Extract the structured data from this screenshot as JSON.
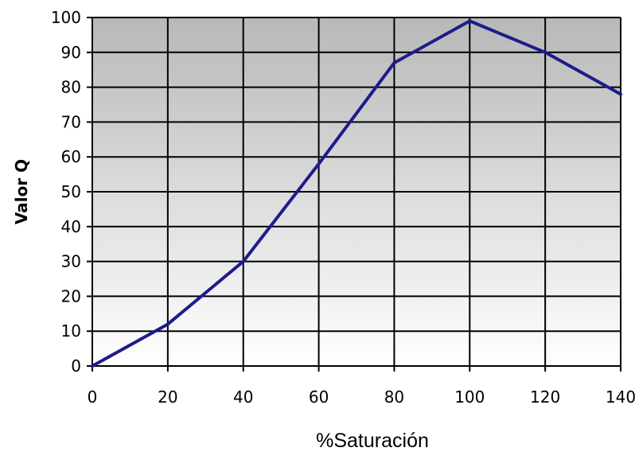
{
  "chart_data": {
    "type": "line",
    "xlabel": "%Saturación",
    "ylabel": "Valor Q",
    "xlim": [
      0,
      140
    ],
    "ylim": [
      0,
      100
    ],
    "x_ticks": [
      "0",
      "20",
      "40",
      "60",
      "80",
      "100",
      "120",
      "140"
    ],
    "y_ticks": [
      "0",
      "10",
      "20",
      "30",
      "40",
      "50",
      "60",
      "70",
      "80",
      "90",
      "100"
    ],
    "grid": true,
    "series": [
      {
        "x": [
          0,
          20,
          40,
          60,
          80,
          100,
          120,
          140
        ],
        "values": [
          0,
          12,
          30,
          58,
          87,
          99,
          90,
          78
        ]
      }
    ],
    "colors": {
      "line": "#1c1c8c",
      "grid": "#000000",
      "plot_top": "#b8b8b8",
      "plot_bottom": "#ffffff"
    }
  }
}
